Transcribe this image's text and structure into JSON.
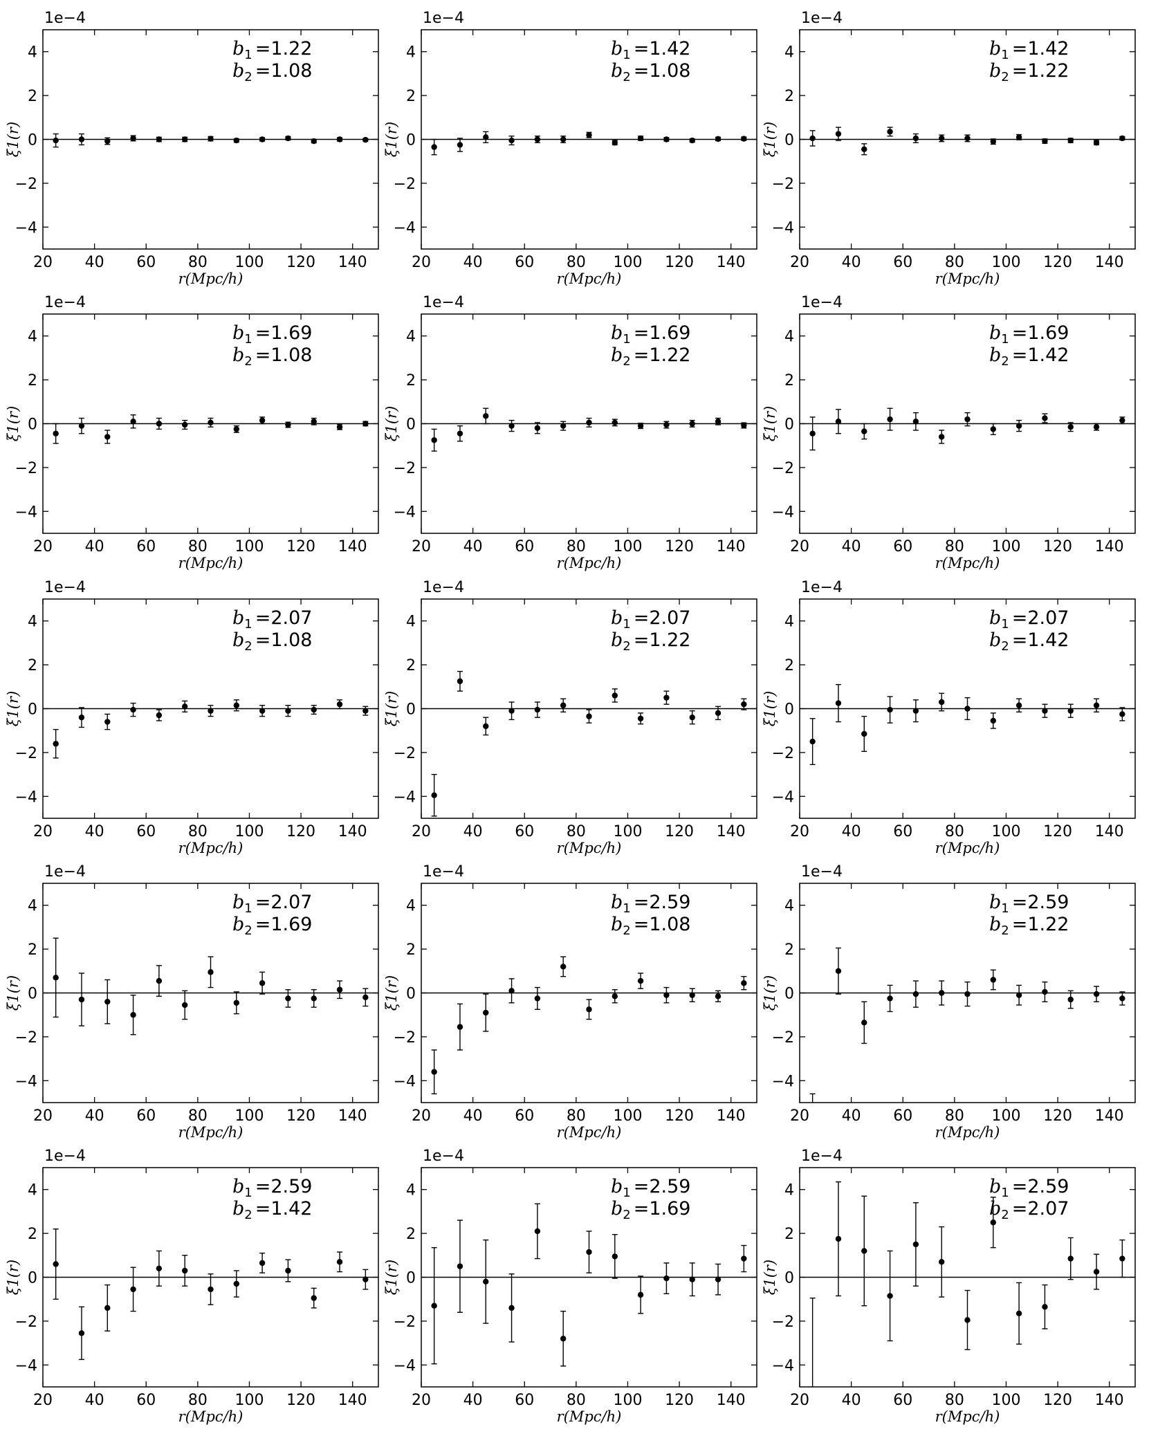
{
  "chart_data": [
    {
      "type": "scatter",
      "xlabel": "r(Mpc/h)",
      "ylabel": "ξ1(r)",
      "scale_label": "1e−4",
      "xlim": [
        20,
        150
      ],
      "ylim": [
        -5,
        5
      ],
      "xticks": [
        20,
        40,
        60,
        80,
        100,
        120,
        140
      ],
      "yticks": [
        -4,
        -2,
        0,
        2,
        4
      ],
      "annotations": [
        {
          "var": "b",
          "sub": "1",
          "value": "=1.22"
        },
        {
          "var": "b",
          "sub": "2",
          "value": "=1.08"
        }
      ],
      "x": [
        25,
        35,
        45,
        55,
        65,
        75,
        85,
        95,
        105,
        115,
        125,
        135,
        145
      ],
      "y": [
        -0.05,
        0.0,
        -0.08,
        0.05,
        0.0,
        0.0,
        0.03,
        -0.05,
        0.0,
        0.05,
        -0.08,
        0.0,
        -0.02
      ],
      "yerr": [
        0.3,
        0.25,
        0.15,
        0.12,
        0.1,
        0.1,
        0.1,
        0.08,
        0.08,
        0.08,
        0.08,
        0.08,
        0.06
      ]
    },
    {
      "type": "scatter",
      "xlabel": "r(Mpc/h)",
      "ylabel": "ξ1(r)",
      "scale_label": "1e−4",
      "xlim": [
        20,
        150
      ],
      "ylim": [
        -5,
        5
      ],
      "xticks": [
        20,
        40,
        60,
        80,
        100,
        120,
        140
      ],
      "yticks": [
        -4,
        -2,
        0,
        2,
        4
      ],
      "annotations": [
        {
          "var": "b",
          "sub": "1",
          "value": "=1.42"
        },
        {
          "var": "b",
          "sub": "2",
          "value": "=1.08"
        }
      ],
      "x": [
        25,
        35,
        45,
        55,
        65,
        75,
        85,
        95,
        105,
        115,
        125,
        135,
        145
      ],
      "y": [
        -0.35,
        -0.25,
        0.1,
        -0.05,
        0.0,
        0.0,
        0.2,
        -0.15,
        0.05,
        0.0,
        -0.05,
        0.02,
        0.03
      ],
      "yerr": [
        0.35,
        0.3,
        0.25,
        0.2,
        0.15,
        0.15,
        0.12,
        0.1,
        0.1,
        0.08,
        0.08,
        0.08,
        0.08
      ]
    },
    {
      "type": "scatter",
      "xlabel": "r(Mpc/h)",
      "ylabel": "ξ1(r)",
      "scale_label": "1e−4",
      "xlim": [
        20,
        150
      ],
      "ylim": [
        -5,
        5
      ],
      "xticks": [
        20,
        40,
        60,
        80,
        100,
        120,
        140
      ],
      "yticks": [
        -4,
        -2,
        0,
        2,
        4
      ],
      "annotations": [
        {
          "var": "b",
          "sub": "1",
          "value": "=1.42"
        },
        {
          "var": "b",
          "sub": "2",
          "value": "=1.22"
        }
      ],
      "x": [
        25,
        35,
        45,
        55,
        65,
        75,
        85,
        95,
        105,
        115,
        125,
        135,
        145
      ],
      "y": [
        0.05,
        0.25,
        -0.45,
        0.35,
        0.05,
        0.05,
        0.05,
        -0.1,
        0.1,
        -0.08,
        -0.05,
        -0.15,
        0.05
      ],
      "yerr": [
        0.35,
        0.3,
        0.25,
        0.2,
        0.2,
        0.15,
        0.15,
        0.12,
        0.12,
        0.1,
        0.1,
        0.1,
        0.08
      ]
    },
    {
      "type": "scatter",
      "xlabel": "r(Mpc/h)",
      "ylabel": "ξ1(r)",
      "scale_label": "1e−4",
      "xlim": [
        20,
        150
      ],
      "ylim": [
        -5,
        5
      ],
      "xticks": [
        20,
        40,
        60,
        80,
        100,
        120,
        140
      ],
      "yticks": [
        -4,
        -2,
        0,
        2,
        4
      ],
      "annotations": [
        {
          "var": "b",
          "sub": "1",
          "value": "=1.69"
        },
        {
          "var": "b",
          "sub": "2",
          "value": "=1.08"
        }
      ],
      "x": [
        25,
        35,
        45,
        55,
        65,
        75,
        85,
        95,
        105,
        115,
        125,
        135,
        145
      ],
      "y": [
        -0.45,
        -0.1,
        -0.6,
        0.1,
        0.0,
        -0.05,
        0.05,
        -0.25,
        0.15,
        -0.05,
        0.1,
        -0.15,
        0.0
      ],
      "yerr": [
        0.45,
        0.35,
        0.3,
        0.3,
        0.25,
        0.2,
        0.2,
        0.15,
        0.15,
        0.12,
        0.15,
        0.12,
        0.1
      ]
    },
    {
      "type": "scatter",
      "xlabel": "r(Mpc/h)",
      "ylabel": "ξ1(r)",
      "scale_label": "1e−4",
      "xlim": [
        20,
        150
      ],
      "ylim": [
        -5,
        5
      ],
      "xticks": [
        20,
        40,
        60,
        80,
        100,
        120,
        140
      ],
      "yticks": [
        -4,
        -2,
        0,
        2,
        4
      ],
      "annotations": [
        {
          "var": "b",
          "sub": "1",
          "value": "=1.69"
        },
        {
          "var": "b",
          "sub": "2",
          "value": "=1.22"
        }
      ],
      "x": [
        25,
        35,
        45,
        55,
        65,
        75,
        85,
        95,
        105,
        115,
        125,
        135,
        145
      ],
      "y": [
        -0.75,
        -0.45,
        0.35,
        -0.1,
        -0.2,
        -0.1,
        0.05,
        0.05,
        -0.1,
        -0.05,
        0.0,
        0.1,
        -0.08
      ],
      "yerr": [
        0.5,
        0.35,
        0.35,
        0.25,
        0.25,
        0.2,
        0.2,
        0.15,
        0.12,
        0.15,
        0.15,
        0.15,
        0.12
      ]
    },
    {
      "type": "scatter",
      "xlabel": "r(Mpc/h)",
      "ylabel": "ξ1(r)",
      "scale_label": "1e−4",
      "xlim": [
        20,
        150
      ],
      "ylim": [
        -5,
        5
      ],
      "xticks": [
        20,
        40,
        60,
        80,
        100,
        120,
        140
      ],
      "yticks": [
        -4,
        -2,
        0,
        2,
        4
      ],
      "annotations": [
        {
          "var": "b",
          "sub": "1",
          "value": "=1.69"
        },
        {
          "var": "b",
          "sub": "2",
          "value": "=1.42"
        }
      ],
      "x": [
        25,
        35,
        45,
        55,
        65,
        75,
        85,
        95,
        105,
        115,
        125,
        135,
        145
      ],
      "y": [
        -0.45,
        0.1,
        -0.35,
        0.2,
        0.1,
        -0.6,
        0.2,
        -0.25,
        -0.1,
        0.25,
        -0.15,
        -0.15,
        0.15
      ],
      "yerr": [
        0.75,
        0.55,
        0.35,
        0.5,
        0.4,
        0.3,
        0.3,
        0.25,
        0.25,
        0.2,
        0.2,
        0.15,
        0.15
      ]
    },
    {
      "type": "scatter",
      "xlabel": "r(Mpc/h)",
      "ylabel": "ξ1(r)",
      "scale_label": "1e−4",
      "xlim": [
        20,
        150
      ],
      "ylim": [
        -5,
        5
      ],
      "xticks": [
        20,
        40,
        60,
        80,
        100,
        120,
        140
      ],
      "yticks": [
        -4,
        -2,
        0,
        2,
        4
      ],
      "annotations": [
        {
          "var": "b",
          "sub": "1",
          "value": "=2.07"
        },
        {
          "var": "b",
          "sub": "2",
          "value": "=1.08"
        }
      ],
      "x": [
        25,
        35,
        45,
        55,
        65,
        75,
        85,
        95,
        105,
        115,
        125,
        135,
        145
      ],
      "y": [
        -1.6,
        -0.4,
        -0.6,
        -0.05,
        -0.3,
        0.1,
        -0.1,
        0.15,
        -0.1,
        -0.1,
        -0.05,
        0.2,
        -0.1
      ],
      "yerr": [
        0.65,
        0.45,
        0.35,
        0.3,
        0.25,
        0.25,
        0.25,
        0.25,
        0.25,
        0.25,
        0.2,
        0.2,
        0.2
      ]
    },
    {
      "type": "scatter",
      "xlabel": "r(Mpc/h)",
      "ylabel": "ξ1(r)",
      "scale_label": "1e−4",
      "xlim": [
        20,
        150
      ],
      "ylim": [
        -5,
        5
      ],
      "xticks": [
        20,
        40,
        60,
        80,
        100,
        120,
        140
      ],
      "yticks": [
        -4,
        -2,
        0,
        2,
        4
      ],
      "annotations": [
        {
          "var": "b",
          "sub": "1",
          "value": "=2.07"
        },
        {
          "var": "b",
          "sub": "2",
          "value": "=1.22"
        }
      ],
      "x": [
        25,
        35,
        45,
        55,
        65,
        75,
        85,
        95,
        105,
        115,
        125,
        135,
        145
      ],
      "y": [
        -3.95,
        1.25,
        -0.8,
        -0.1,
        -0.05,
        0.15,
        -0.35,
        0.6,
        -0.45,
        0.5,
        -0.4,
        -0.2,
        0.2
      ],
      "yerr": [
        0.95,
        0.45,
        0.4,
        0.4,
        0.35,
        0.3,
        0.3,
        0.3,
        0.25,
        0.3,
        0.3,
        0.3,
        0.25
      ]
    },
    {
      "type": "scatter",
      "xlabel": "r(Mpc/h)",
      "ylabel": "ξ1(r)",
      "scale_label": "1e−4",
      "xlim": [
        20,
        150
      ],
      "ylim": [
        -5,
        5
      ],
      "xticks": [
        20,
        40,
        60,
        80,
        100,
        120,
        140
      ],
      "yticks": [
        -4,
        -2,
        0,
        2,
        4
      ],
      "annotations": [
        {
          "var": "b",
          "sub": "1",
          "value": "=2.07"
        },
        {
          "var": "b",
          "sub": "2",
          "value": "=1.42"
        }
      ],
      "x": [
        25,
        35,
        45,
        55,
        65,
        75,
        85,
        95,
        105,
        115,
        125,
        135,
        145
      ],
      "y": [
        -1.5,
        0.25,
        -1.15,
        -0.05,
        -0.1,
        0.3,
        0.0,
        -0.55,
        0.15,
        -0.1,
        -0.1,
        0.15,
        -0.25
      ],
      "yerr": [
        1.05,
        0.85,
        0.8,
        0.6,
        0.5,
        0.4,
        0.5,
        0.35,
        0.3,
        0.3,
        0.3,
        0.3,
        0.3
      ]
    },
    {
      "type": "scatter",
      "xlabel": "r(Mpc/h)",
      "ylabel": "ξ1(r)",
      "scale_label": "1e−4",
      "xlim": [
        20,
        150
      ],
      "ylim": [
        -5,
        5
      ],
      "xticks": [
        20,
        40,
        60,
        80,
        100,
        120,
        140
      ],
      "yticks": [
        -4,
        -2,
        0,
        2,
        4
      ],
      "annotations": [
        {
          "var": "b",
          "sub": "1",
          "value": "=2.07"
        },
        {
          "var": "b",
          "sub": "2",
          "value": "=1.69"
        }
      ],
      "x": [
        25,
        35,
        45,
        55,
        65,
        75,
        85,
        95,
        105,
        115,
        125,
        135,
        145
      ],
      "y": [
        0.7,
        -0.3,
        -0.4,
        -1.0,
        0.55,
        -0.55,
        0.95,
        -0.45,
        0.45,
        -0.25,
        -0.25,
        0.15,
        -0.2
      ],
      "yerr": [
        1.8,
        1.2,
        1.0,
        0.9,
        0.7,
        0.65,
        0.7,
        0.5,
        0.5,
        0.4,
        0.4,
        0.4,
        0.4
      ]
    },
    {
      "type": "scatter",
      "xlabel": "r(Mpc/h)",
      "ylabel": "ξ1(r)",
      "scale_label": "1e−4",
      "xlim": [
        20,
        150
      ],
      "ylim": [
        -5,
        5
      ],
      "xticks": [
        20,
        40,
        60,
        80,
        100,
        120,
        140
      ],
      "yticks": [
        -4,
        -2,
        0,
        2,
        4
      ],
      "annotations": [
        {
          "var": "b",
          "sub": "1",
          "value": "=2.59"
        },
        {
          "var": "b",
          "sub": "2",
          "value": "=1.08"
        }
      ],
      "x": [
        25,
        35,
        45,
        55,
        65,
        75,
        85,
        95,
        105,
        115,
        125,
        135,
        145
      ],
      "y": [
        -3.6,
        -1.55,
        -0.9,
        0.1,
        -0.25,
        1.2,
        -0.75,
        -0.15,
        0.55,
        -0.1,
        -0.1,
        -0.15,
        0.45
      ],
      "yerr": [
        1.0,
        1.05,
        0.85,
        0.55,
        0.5,
        0.45,
        0.45,
        0.3,
        0.35,
        0.35,
        0.3,
        0.25,
        0.3
      ]
    },
    {
      "type": "scatter",
      "xlabel": "r(Mpc/h)",
      "ylabel": "ξ1(r)",
      "scale_label": "1e−4",
      "xlim": [
        20,
        150
      ],
      "ylim": [
        -5,
        5
      ],
      "xticks": [
        20,
        40,
        60,
        80,
        100,
        120,
        140
      ],
      "yticks": [
        -4,
        -2,
        0,
        2,
        4
      ],
      "annotations": [
        {
          "var": "b",
          "sub": "1",
          "value": "=2.59"
        },
        {
          "var": "b",
          "sub": "2",
          "value": "=1.22"
        }
      ],
      "x": [
        35,
        45,
        55,
        65,
        75,
        85,
        95,
        105,
        115,
        125,
        135,
        145
      ],
      "y": [
        1.0,
        -1.35,
        -0.25,
        -0.05,
        0.0,
        -0.05,
        0.6,
        -0.1,
        0.05,
        -0.3,
        -0.05,
        -0.25
      ],
      "yerr": [
        1.05,
        0.95,
        0.6,
        0.6,
        0.55,
        0.55,
        0.45,
        0.45,
        0.45,
        0.4,
        0.35,
        0.3
      ],
      "partial_errorbars": [
        {
          "x": 25,
          "y_upper": -4.6
        }
      ]
    },
    {
      "type": "scatter",
      "xlabel": "r(Mpc/h)",
      "ylabel": "ξ1(r)",
      "scale_label": "1e−4",
      "xlim": [
        20,
        150
      ],
      "ylim": [
        -5,
        5
      ],
      "xticks": [
        20,
        40,
        60,
        80,
        100,
        120,
        140
      ],
      "yticks": [
        -4,
        -2,
        0,
        2,
        4
      ],
      "annotations": [
        {
          "var": "b",
          "sub": "1",
          "value": "=2.59"
        },
        {
          "var": "b",
          "sub": "2",
          "value": "=1.42"
        }
      ],
      "x": [
        25,
        35,
        45,
        55,
        65,
        75,
        85,
        95,
        105,
        115,
        125,
        135,
        145
      ],
      "y": [
        0.6,
        -2.55,
        -1.4,
        -0.55,
        0.4,
        0.3,
        -0.55,
        -0.3,
        0.65,
        0.3,
        -0.95,
        0.7,
        -0.1
      ],
      "yerr": [
        1.6,
        1.2,
        1.05,
        1.0,
        0.8,
        0.7,
        0.7,
        0.6,
        0.45,
        0.5,
        0.45,
        0.45,
        0.45
      ]
    },
    {
      "type": "scatter",
      "xlabel": "r(Mpc/h)",
      "ylabel": "ξ1(r)",
      "scale_label": "1e−4",
      "xlim": [
        20,
        150
      ],
      "ylim": [
        -5,
        5
      ],
      "xticks": [
        20,
        40,
        60,
        80,
        100,
        120,
        140
      ],
      "yticks": [
        -4,
        -2,
        0,
        2,
        4
      ],
      "annotations": [
        {
          "var": "b",
          "sub": "1",
          "value": "=2.59"
        },
        {
          "var": "b",
          "sub": "2",
          "value": "=1.69"
        }
      ],
      "x": [
        25,
        35,
        45,
        55,
        65,
        75,
        85,
        95,
        105,
        115,
        125,
        135,
        145
      ],
      "y": [
        -1.3,
        0.5,
        -0.2,
        -1.4,
        2.1,
        -2.8,
        1.15,
        0.95,
        -0.8,
        -0.05,
        -0.1,
        -0.1,
        0.85
      ],
      "yerr": [
        2.65,
        2.1,
        1.9,
        1.55,
        1.25,
        1.25,
        0.95,
        1.0,
        0.85,
        0.7,
        0.75,
        0.7,
        0.6
      ]
    },
    {
      "type": "scatter",
      "xlabel": "r(Mpc/h)",
      "ylabel": "ξ1(r)",
      "scale_label": "1e−4",
      "xlim": [
        20,
        150
      ],
      "ylim": [
        -5,
        5
      ],
      "xticks": [
        20,
        40,
        60,
        80,
        100,
        120,
        140
      ],
      "yticks": [
        -4,
        -2,
        0,
        2,
        4
      ],
      "annotations": [
        {
          "var": "b",
          "sub": "1",
          "value": "=2.59"
        },
        {
          "var": "b",
          "sub": "2",
          "value": "=2.07"
        }
      ],
      "x": [
        35,
        45,
        55,
        65,
        75,
        85,
        95,
        105,
        115,
        125,
        135,
        145
      ],
      "y": [
        1.75,
        1.2,
        -0.85,
        1.5,
        0.7,
        -1.95,
        2.5,
        -1.65,
        -1.35,
        0.85,
        0.25,
        0.85
      ],
      "yerr": [
        2.6,
        2.5,
        2.05,
        1.9,
        1.6,
        1.35,
        1.15,
        1.4,
        1.0,
        0.95,
        0.8,
        0.85
      ],
      "partial_errorbars": [
        {
          "x": 25,
          "y_upper": -0.95
        }
      ]
    }
  ]
}
